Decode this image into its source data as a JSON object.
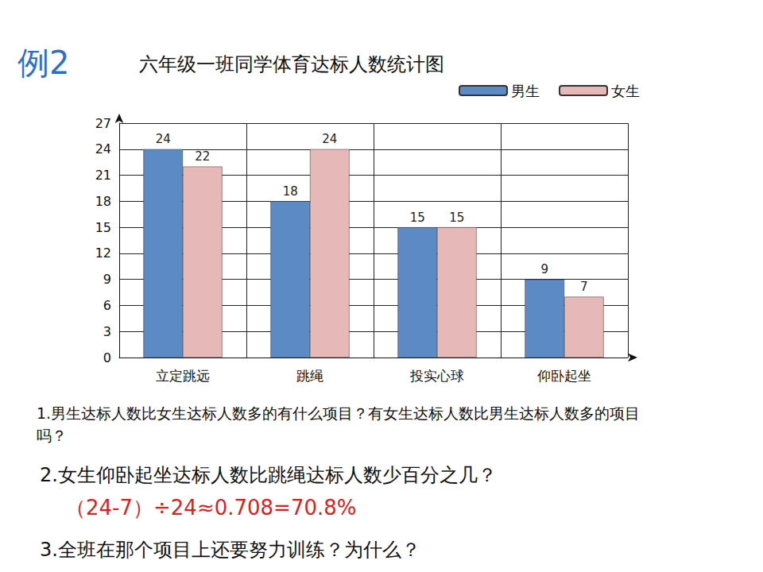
{
  "chart_data": {
    "type": "bar",
    "title": "六年级一班同学体育达标人数统计图",
    "categories": [
      "立定跳远",
      "跳绳",
      "投实心球",
      "仰卧起坐"
    ],
    "series": [
      {
        "name": "男生",
        "color": "#5b8ac5",
        "values": [
          24,
          18,
          15,
          9
        ]
      },
      {
        "name": "女生",
        "color": "#e6b8b7",
        "values": [
          22,
          24,
          15,
          7
        ]
      }
    ],
    "ylim": [
      0,
      27
    ],
    "yticks": [
      0,
      3,
      6,
      9,
      12,
      15,
      18,
      21,
      24,
      27
    ],
    "grid": true,
    "legend": "top-right",
    "data_labels": true
  },
  "heading": "例2",
  "questions": [
    {
      "text": "1.男生达标人数比女生达标人数多的有什么项目？有女生达标人数比男生达标人数多的项目吗？"
    },
    {
      "text": "2.女生仰卧起坐达标人数比跳绳达标人数少百分之几？",
      "answer": "（24-7）÷24≈0.708=70.8%"
    },
    {
      "text": "3.全班在那个项目上还要努力训练？为什么？"
    }
  ]
}
